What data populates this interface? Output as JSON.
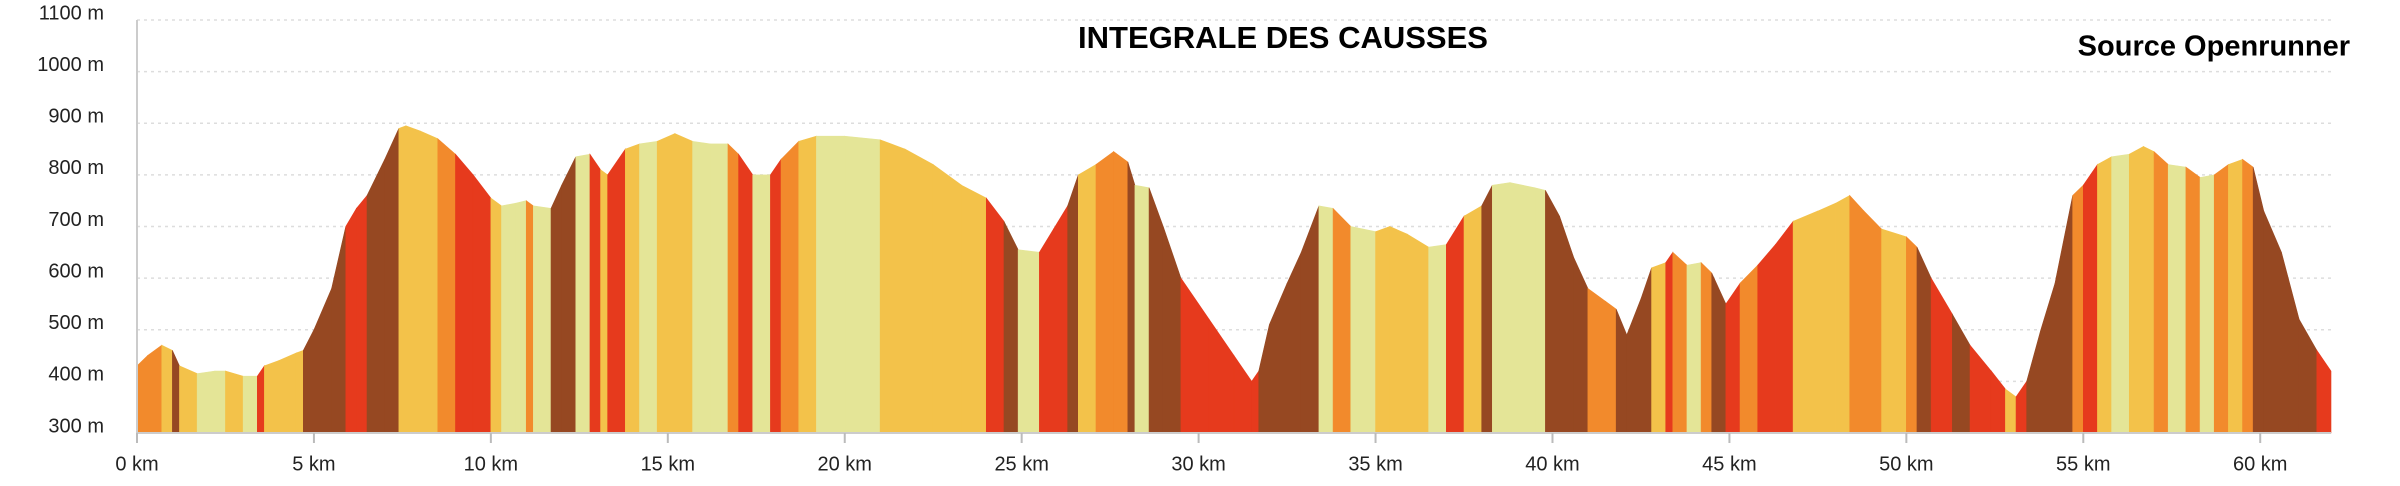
{
  "chart_data": {
    "type": "elevation-profile",
    "title": "INTEGRALE DES CAUSSES",
    "source": "Source Openrunner",
    "palette": [
      "#e4e597",
      "#f3c24a",
      "#f28a2c",
      "#e63a1d",
      "#964822"
    ],
    "grid": true,
    "xlim": [
      0,
      62
    ],
    "ylim": [
      300,
      1100
    ],
    "xticks": [
      {
        "value": 0,
        "label": "0 km"
      },
      {
        "value": 5,
        "label": "5 km"
      },
      {
        "value": 10,
        "label": "10 km"
      },
      {
        "value": 15,
        "label": "15 km"
      },
      {
        "value": 20,
        "label": "20 km"
      },
      {
        "value": 25,
        "label": "25 km"
      },
      {
        "value": 30,
        "label": "30 km"
      },
      {
        "value": 35,
        "label": "35 km"
      },
      {
        "value": 40,
        "label": "40 km"
      },
      {
        "value": 45,
        "label": "45 km"
      },
      {
        "value": 50,
        "label": "50 km"
      },
      {
        "value": 55,
        "label": "55 km"
      },
      {
        "value": 60,
        "label": "60 km"
      }
    ],
    "yticks": [
      {
        "value": 300,
        "label": "300 m"
      },
      {
        "value": 400,
        "label": "400 m"
      },
      {
        "value": 500,
        "label": "500 m"
      },
      {
        "value": 600,
        "label": "600 m"
      },
      {
        "value": 700,
        "label": "700 m"
      },
      {
        "value": 800,
        "label": "800 m"
      },
      {
        "value": 900,
        "label": "900 m"
      },
      {
        "value": 1000,
        "label": "1000 m"
      },
      {
        "value": 1100,
        "label": "1100 m"
      }
    ],
    "x": [
      0,
      0.3,
      0.7,
      1.0,
      1.2,
      1.7,
      2.2,
      2.5,
      3.0,
      3.4,
      3.6,
      4.0,
      4.5,
      4.7,
      5.0,
      5.5,
      5.9,
      6.2,
      6.5,
      7.0,
      7.4,
      7.6,
      8.0,
      8.5,
      9.0,
      9.5,
      10.0,
      10.3,
      10.7,
      11.0,
      11.2,
      11.7,
      12.0,
      12.4,
      12.8,
      13.1,
      13.3,
      13.8,
      14.2,
      14.7,
      15.2,
      15.7,
      16.2,
      16.7,
      17.0,
      17.4,
      17.9,
      18.2,
      18.7,
      19.2,
      20.0,
      21.0,
      21.7,
      22.5,
      23.3,
      24.0,
      24.5,
      24.9,
      25.5,
      25.9,
      26.3,
      26.6,
      27.1,
      27.6,
      28.0,
      28.2,
      28.6,
      29.0,
      29.5,
      30.3,
      31.0,
      31.5,
      31.7,
      32.0,
      32.5,
      32.9,
      33.4,
      33.8,
      34.3,
      35.0,
      35.4,
      35.9,
      36.5,
      37.0,
      37.5,
      38.0,
      38.3,
      38.8,
      39.5,
      39.8,
      40.2,
      40.6,
      41.0,
      41.5,
      41.8,
      42.1,
      42.5,
      42.8,
      43.2,
      43.4,
      43.8,
      44.2,
      44.5,
      44.9,
      45.3,
      45.8,
      46.3,
      46.8,
      47.5,
      48.0,
      48.4,
      48.8,
      49.3,
      50.0,
      50.3,
      50.7,
      51.3,
      51.8,
      52.4,
      52.8,
      53.1,
      53.4,
      53.8,
      54.2,
      54.7,
      55.0,
      55.4,
      55.8,
      56.3,
      56.7,
      57.0,
      57.4,
      57.9,
      58.3,
      58.7,
      59.1,
      59.5,
      59.8,
      60.1,
      60.6,
      61.1,
      61.6,
      62.0
    ],
    "values": [
      430,
      450,
      470,
      460,
      430,
      415,
      420,
      420,
      410,
      410,
      430,
      440,
      455,
      460,
      500,
      580,
      700,
      735,
      760,
      830,
      890,
      895,
      885,
      870,
      840,
      800,
      755,
      740,
      745,
      750,
      740,
      735,
      780,
      835,
      840,
      810,
      800,
      850,
      860,
      865,
      880,
      865,
      860,
      860,
      840,
      800,
      800,
      830,
      865,
      875,
      875,
      868,
      850,
      820,
      780,
      755,
      710,
      655,
      650,
      695,
      740,
      800,
      820,
      845,
      825,
      780,
      775,
      700,
      600,
      520,
      450,
      400,
      420,
      510,
      590,
      650,
      740,
      735,
      700,
      690,
      700,
      685,
      660,
      665,
      720,
      740,
      780,
      785,
      775,
      770,
      720,
      640,
      580,
      555,
      540,
      490,
      560,
      620,
      630,
      650,
      625,
      630,
      610,
      550,
      590,
      625,
      665,
      710,
      730,
      745,
      760,
      730,
      695,
      680,
      660,
      600,
      530,
      470,
      420,
      385,
      370,
      400,
      500,
      590,
      760,
      780,
      820,
      835,
      840,
      855,
      845,
      820,
      815,
      795,
      800,
      820,
      830,
      815,
      730,
      650,
      520,
      460,
      420
    ]
  }
}
